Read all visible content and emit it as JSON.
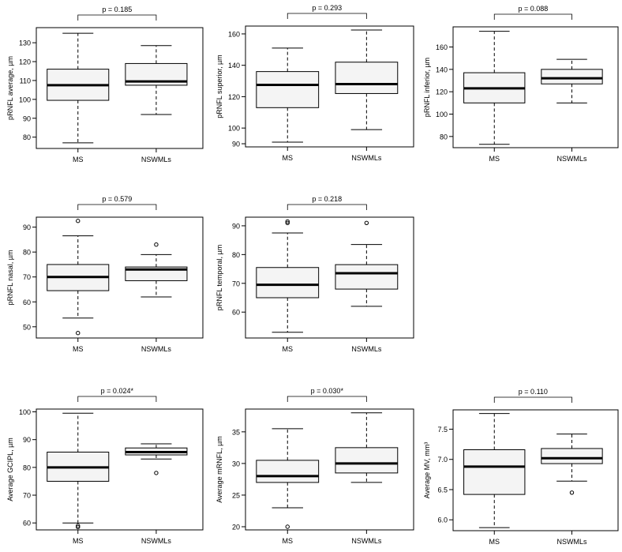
{
  "chart_data": [
    {
      "type": "boxplot",
      "ylabel": "pRNFL average, µm",
      "pvalue_label": "p = 0.185",
      "categories": [
        "MS",
        "NSWMLs"
      ],
      "yticks": [
        80,
        90,
        100,
        110,
        120,
        130
      ],
      "ylim": [
        74,
        138
      ],
      "boxes": [
        {
          "min": 77,
          "q1": 99.5,
          "median": 107.5,
          "q3": 116,
          "max": 135,
          "outliers": []
        },
        {
          "min": 92,
          "q1": 107.5,
          "median": 109.5,
          "q3": 119,
          "max": 128.5,
          "outliers": []
        }
      ]
    },
    {
      "type": "boxplot",
      "ylabel": "pRNFL superior, µm",
      "pvalue_label": "p = 0.293",
      "categories": [
        "MS",
        "NSWMLs"
      ],
      "yticks": [
        90,
        100,
        120,
        140,
        160
      ],
      "ylim": [
        88,
        165
      ],
      "boxes": [
        {
          "min": 91,
          "q1": 113,
          "median": 127.5,
          "q3": 136,
          "max": 151,
          "outliers": []
        },
        {
          "min": 99,
          "q1": 122,
          "median": 128,
          "q3": 142,
          "max": 162.5,
          "outliers": []
        }
      ]
    },
    {
      "type": "boxplot",
      "ylabel": "pRNFL inferior, µm",
      "pvalue_label": "p = 0.088",
      "categories": [
        "MS",
        "NSWMLs"
      ],
      "yticks": [
        80,
        100,
        120,
        140,
        160
      ],
      "ylim": [
        70,
        178
      ],
      "boxes": [
        {
          "min": 73,
          "q1": 110,
          "median": 123,
          "q3": 137,
          "max": 174,
          "outliers": []
        },
        {
          "min": 110,
          "q1": 127,
          "median": 132,
          "q3": 140,
          "max": 149,
          "outliers": []
        }
      ]
    },
    {
      "type": "boxplot",
      "ylabel": "pRNFL nasal, µm",
      "pvalue_label": "p = 0.579",
      "categories": [
        "MS",
        "NSWMLs"
      ],
      "yticks": [
        50,
        60,
        70,
        80,
        90
      ],
      "ylim": [
        45.5,
        94
      ],
      "boxes": [
        {
          "min": 53.5,
          "q1": 64.5,
          "median": 70,
          "q3": 75,
          "max": 86.5,
          "outliers": [
            47.5,
            92.5
          ]
        },
        {
          "min": 62,
          "q1": 68.5,
          "median": 73,
          "q3": 74,
          "max": 79,
          "outliers": [
            83
          ]
        }
      ]
    },
    {
      "type": "boxplot",
      "ylabel": "pRNFL temporal, µm",
      "pvalue_label": "p = 0.218",
      "categories": [
        "MS",
        "NSWMLs"
      ],
      "yticks": [
        60,
        70,
        80,
        90
      ],
      "ylim": [
        51,
        93
      ],
      "boxes": [
        {
          "min": 53,
          "q1": 65,
          "median": 69.5,
          "q3": 75.5,
          "max": 87.5,
          "outliers": [
            91,
            91.5
          ]
        },
        {
          "min": 62,
          "q1": 68,
          "median": 73.5,
          "q3": 76.5,
          "max": 83.5,
          "outliers": [
            91
          ]
        }
      ]
    },
    {
      "type": "boxplot",
      "ylabel": "Average GCIPL, µm",
      "pvalue_label": "p = 0.024*",
      "categories": [
        "MS",
        "NSWMLs"
      ],
      "yticks": [
        60,
        70,
        80,
        90,
        100
      ],
      "ylim": [
        57.5,
        101
      ],
      "boxes": [
        {
          "min": 60,
          "q1": 75,
          "median": 80,
          "q3": 85.5,
          "max": 99.5,
          "outliers": [
            58.5,
            59
          ]
        },
        {
          "min": 83,
          "q1": 84.5,
          "median": 85.5,
          "q3": 87,
          "max": 88.5,
          "outliers": [
            78
          ]
        }
      ]
    },
    {
      "type": "boxplot",
      "ylabel": "Average mRNFL, µm",
      "pvalue_label": "p = 0.030*",
      "categories": [
        "MS",
        "NSWMLs"
      ],
      "yticks": [
        20,
        25,
        30,
        35
      ],
      "ylim": [
        19.5,
        38.6
      ],
      "boxes": [
        {
          "min": 23,
          "q1": 27,
          "median": 28,
          "q3": 30.5,
          "max": 35.5,
          "outliers": [
            20
          ]
        },
        {
          "min": 27,
          "q1": 28.5,
          "median": 30,
          "q3": 32.5,
          "max": 38,
          "outliers": []
        }
      ]
    },
    {
      "type": "boxplot",
      "ylabel": "Average MV, mm³",
      "pvalue_label": "p = 0.110",
      "categories": [
        "MS",
        "NSWMLs"
      ],
      "yticks": [
        "6.0",
        "6.5",
        "7.0",
        "7.5"
      ],
      "ylim": [
        5.82,
        7.82
      ],
      "boxes": [
        {
          "min": 5.87,
          "q1": 6.42,
          "median": 6.88,
          "q3": 7.16,
          "max": 7.76,
          "outliers": []
        },
        {
          "min": 6.64,
          "q1": 6.93,
          "median": 7.02,
          "q3": 7.18,
          "max": 7.42,
          "outliers": [
            6.45
          ]
        }
      ]
    }
  ]
}
